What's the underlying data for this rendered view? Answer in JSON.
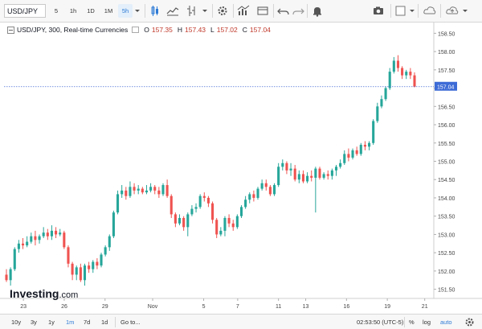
{
  "toolbar": {
    "symbol": "USD/JPY",
    "timeframes": [
      "5",
      "1h",
      "1D",
      "1M",
      "5h"
    ],
    "active_timeframe": "5h"
  },
  "legend": {
    "title": "USD/JPY, 300, Real-time Currencies",
    "open_key": "O",
    "open": "157.35",
    "high_key": "H",
    "high": "157.43",
    "low_key": "L",
    "low": "157.02",
    "close_key": "C",
    "close": "157.04"
  },
  "watermark": {
    "brand": "Investing",
    "suffix": ".com"
  },
  "bottombar": {
    "ranges": [
      "10y",
      "3y",
      "1y",
      "1m",
      "7d",
      "1d"
    ],
    "active_range": "1m",
    "goto": "Go to...",
    "time": "02:53:50 (UTC-5)",
    "percent": "%",
    "log": "log",
    "auto": "auto"
  },
  "colors": {
    "up": "#26a69a",
    "down": "#ef5350",
    "price_line": "#4a6fd6",
    "price_label_bg": "#3d6bd6"
  },
  "chart_data": {
    "type": "candlestick",
    "yticks": [
      "158.50",
      "158.00",
      "157.50",
      "157.00",
      "156.50",
      "156.00",
      "155.50",
      "155.00",
      "154.50",
      "154.00",
      "153.50",
      "153.00",
      "152.50",
      "152.00",
      "151.50"
    ],
    "ylim": [
      151.25,
      158.75
    ],
    "xticks": [
      "23",
      "26",
      "29",
      "Nov",
      "5",
      "7",
      "11",
      "13",
      "16",
      "19",
      "21"
    ],
    "last_price": "157.04",
    "candles": [
      [
        151.9,
        151.75,
        152.05,
        151.7
      ],
      [
        151.75,
        152.05,
        152.1,
        151.6
      ],
      [
        152.05,
        152.6,
        152.65,
        152.0
      ],
      [
        152.6,
        152.75,
        152.85,
        152.5
      ],
      [
        152.75,
        152.7,
        152.9,
        152.6
      ],
      [
        152.7,
        152.8,
        152.95,
        152.65
      ],
      [
        152.8,
        152.95,
        153.05,
        152.75
      ],
      [
        152.95,
        152.85,
        153.1,
        152.7
      ],
      [
        152.85,
        152.95,
        153.0,
        152.75
      ],
      [
        152.95,
        153.05,
        153.2,
        152.9
      ],
      [
        153.05,
        152.95,
        153.15,
        152.85
      ],
      [
        152.95,
        153.1,
        153.25,
        152.85
      ],
      [
        153.1,
        153.0,
        153.2,
        152.9
      ],
      [
        153.0,
        153.05,
        153.15,
        152.95
      ],
      [
        153.05,
        152.65,
        153.1,
        152.6
      ],
      [
        152.65,
        152.2,
        152.7,
        152.1
      ],
      [
        152.2,
        151.9,
        152.25,
        151.75
      ],
      [
        151.9,
        152.1,
        152.15,
        151.75
      ],
      [
        152.1,
        151.75,
        152.2,
        151.7
      ],
      [
        151.75,
        152.15,
        152.2,
        151.6
      ],
      [
        152.15,
        152.05,
        152.25,
        151.95
      ],
      [
        152.05,
        152.25,
        152.3,
        151.95
      ],
      [
        152.25,
        152.15,
        152.35,
        152.05
      ],
      [
        152.15,
        152.45,
        152.5,
        152.1
      ],
      [
        152.45,
        152.65,
        152.7,
        152.4
      ],
      [
        152.65,
        152.95,
        153.0,
        152.55
      ],
      [
        152.95,
        153.6,
        153.65,
        152.9
      ],
      [
        153.6,
        154.1,
        154.2,
        153.55
      ],
      [
        154.1,
        154.2,
        154.35,
        154.0
      ],
      [
        154.2,
        154.05,
        154.3,
        153.95
      ],
      [
        154.05,
        154.3,
        154.45,
        154.0
      ],
      [
        154.3,
        154.2,
        154.4,
        154.1
      ],
      [
        154.2,
        154.25,
        154.35,
        154.1
      ],
      [
        154.25,
        154.15,
        154.3,
        154.1
      ],
      [
        154.15,
        154.2,
        154.35,
        154.1
      ],
      [
        154.2,
        154.3,
        154.4,
        154.15
      ],
      [
        154.3,
        154.2,
        154.35,
        154.1
      ],
      [
        154.2,
        154.1,
        154.3,
        154.0
      ],
      [
        154.1,
        154.35,
        154.4,
        154.05
      ],
      [
        154.35,
        154.05,
        154.5,
        154.0
      ],
      [
        154.05,
        153.55,
        154.1,
        153.45
      ],
      [
        153.55,
        153.3,
        153.6,
        153.2
      ],
      [
        153.3,
        153.45,
        153.55,
        153.25
      ],
      [
        153.45,
        153.2,
        153.5,
        153.1
      ],
      [
        153.2,
        153.55,
        153.6,
        152.95
      ],
      [
        153.55,
        153.7,
        153.8,
        153.5
      ],
      [
        153.7,
        153.75,
        153.85,
        153.6
      ],
      [
        153.75,
        154.05,
        154.1,
        153.7
      ],
      [
        154.05,
        154.0,
        154.15,
        153.9
      ],
      [
        154.0,
        153.85,
        154.05,
        153.75
      ],
      [
        153.85,
        153.4,
        153.9,
        153.3
      ],
      [
        153.4,
        153.0,
        153.45,
        152.9
      ],
      [
        153.0,
        153.1,
        153.2,
        152.95
      ],
      [
        153.1,
        153.45,
        153.5,
        152.95
      ],
      [
        153.45,
        153.3,
        153.55,
        153.2
      ],
      [
        153.3,
        153.2,
        153.4,
        153.1
      ],
      [
        153.2,
        153.5,
        153.55,
        153.15
      ],
      [
        153.5,
        153.75,
        153.8,
        153.45
      ],
      [
        153.75,
        153.95,
        154.05,
        153.7
      ],
      [
        153.95,
        154.1,
        154.15,
        153.85
      ],
      [
        154.1,
        154.0,
        154.2,
        153.9
      ],
      [
        154.0,
        154.25,
        154.3,
        153.95
      ],
      [
        154.25,
        154.4,
        154.5,
        154.2
      ],
      [
        154.4,
        154.3,
        154.5,
        154.2
      ],
      [
        154.3,
        154.1,
        154.35,
        154.05
      ],
      [
        154.1,
        154.35,
        154.4,
        154.05
      ],
      [
        154.35,
        154.85,
        154.95,
        154.3
      ],
      [
        154.85,
        154.95,
        155.05,
        154.75
      ],
      [
        154.95,
        154.75,
        155.0,
        154.65
      ],
      [
        154.75,
        154.8,
        154.95,
        154.6
      ],
      [
        154.8,
        154.5,
        154.9,
        154.45
      ],
      [
        154.5,
        154.65,
        154.75,
        154.4
      ],
      [
        154.65,
        154.45,
        154.75,
        154.4
      ],
      [
        154.45,
        154.6,
        154.7,
        154.4
      ],
      [
        154.6,
        154.55,
        154.75,
        154.45
      ],
      [
        154.55,
        154.8,
        154.85,
        153.6
      ],
      [
        154.8,
        154.55,
        154.85,
        154.5
      ],
      [
        154.55,
        154.65,
        154.7,
        154.5
      ],
      [
        154.65,
        154.6,
        154.75,
        154.5
      ],
      [
        154.6,
        154.75,
        154.8,
        154.5
      ],
      [
        154.75,
        154.85,
        154.9,
        154.6
      ],
      [
        154.85,
        154.95,
        155.05,
        154.8
      ],
      [
        154.95,
        155.2,
        155.3,
        154.9
      ],
      [
        155.2,
        155.1,
        155.35,
        155.0
      ],
      [
        155.1,
        155.3,
        155.35,
        155.05
      ],
      [
        155.3,
        155.2,
        155.4,
        155.15
      ],
      [
        155.2,
        155.45,
        155.5,
        155.15
      ],
      [
        155.45,
        155.4,
        155.55,
        155.3
      ],
      [
        155.4,
        155.5,
        155.55,
        155.3
      ],
      [
        155.5,
        156.1,
        156.15,
        155.45
      ],
      [
        156.1,
        156.5,
        156.6,
        156.05
      ],
      [
        156.5,
        156.7,
        156.8,
        156.45
      ],
      [
        156.7,
        157.0,
        157.05,
        156.65
      ],
      [
        157.0,
        157.45,
        157.55,
        156.95
      ],
      [
        157.45,
        157.75,
        157.85,
        157.4
      ],
      [
        157.75,
        157.55,
        157.9,
        157.45
      ],
      [
        157.55,
        157.35,
        157.6,
        157.25
      ],
      [
        157.35,
        157.45,
        157.5,
        157.25
      ],
      [
        157.45,
        157.35,
        157.55,
        157.25
      ],
      [
        157.35,
        157.04,
        157.43,
        157.02
      ]
    ]
  }
}
